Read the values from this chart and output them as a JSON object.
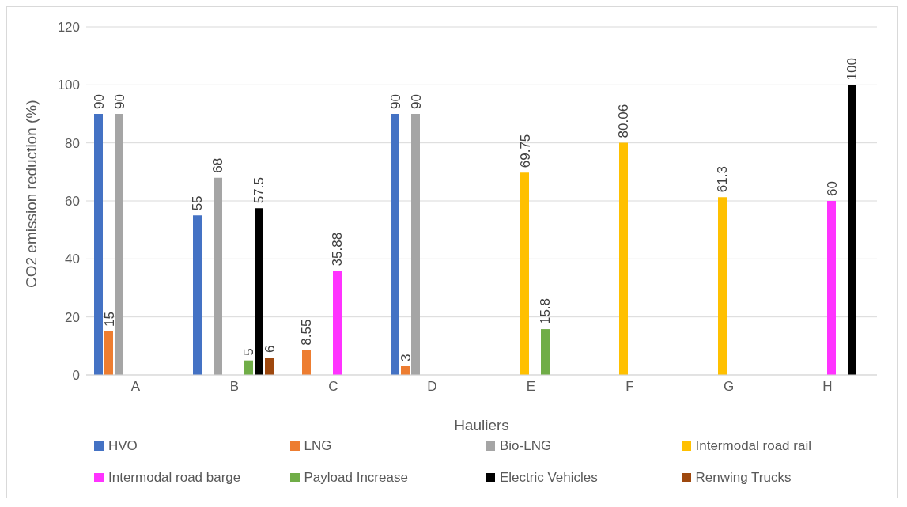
{
  "chart_data": {
    "type": "bar",
    "xlabel": "Hauliers",
    "ylabel": "CO2 emission reduction (%)",
    "categories": [
      "A",
      "B",
      "C",
      "D",
      "E",
      "F",
      "G",
      "H"
    ],
    "series": [
      {
        "name": "HVO",
        "color": "#4472c4",
        "values": [
          90,
          55,
          null,
          90,
          null,
          null,
          null,
          null
        ]
      },
      {
        "name": "LNG",
        "color": "#ed7d31",
        "values": [
          15,
          null,
          8.55,
          3,
          null,
          null,
          null,
          null
        ]
      },
      {
        "name": "Bio-LNG",
        "color": "#a5a5a5",
        "values": [
          90,
          68,
          null,
          90,
          null,
          null,
          null,
          null
        ]
      },
      {
        "name": "Intermodal road rail",
        "color": "#ffc000",
        "values": [
          null,
          null,
          null,
          null,
          69.75,
          80.06,
          61.3,
          null
        ]
      },
      {
        "name": "Intermodal road barge",
        "color": "#ff33ff",
        "values": [
          null,
          null,
          35.88,
          null,
          null,
          null,
          null,
          60
        ]
      },
      {
        "name": "Payload Increase",
        "color": "#70ad47",
        "values": [
          null,
          5,
          null,
          null,
          15.8,
          null,
          null,
          null
        ]
      },
      {
        "name": "Electric Vehicles",
        "color": "#000000",
        "values": [
          null,
          57.5,
          null,
          null,
          null,
          null,
          null,
          100
        ]
      },
      {
        "name": "Renwing Trucks",
        "color": "#9e480e",
        "values": [
          null,
          6,
          null,
          null,
          null,
          null,
          null,
          null
        ]
      }
    ],
    "ylim": [
      0,
      120
    ],
    "yticks": [
      0,
      20,
      40,
      60,
      80,
      100,
      120
    ],
    "grid": "y",
    "legend": "bottom",
    "data_labels": true
  }
}
